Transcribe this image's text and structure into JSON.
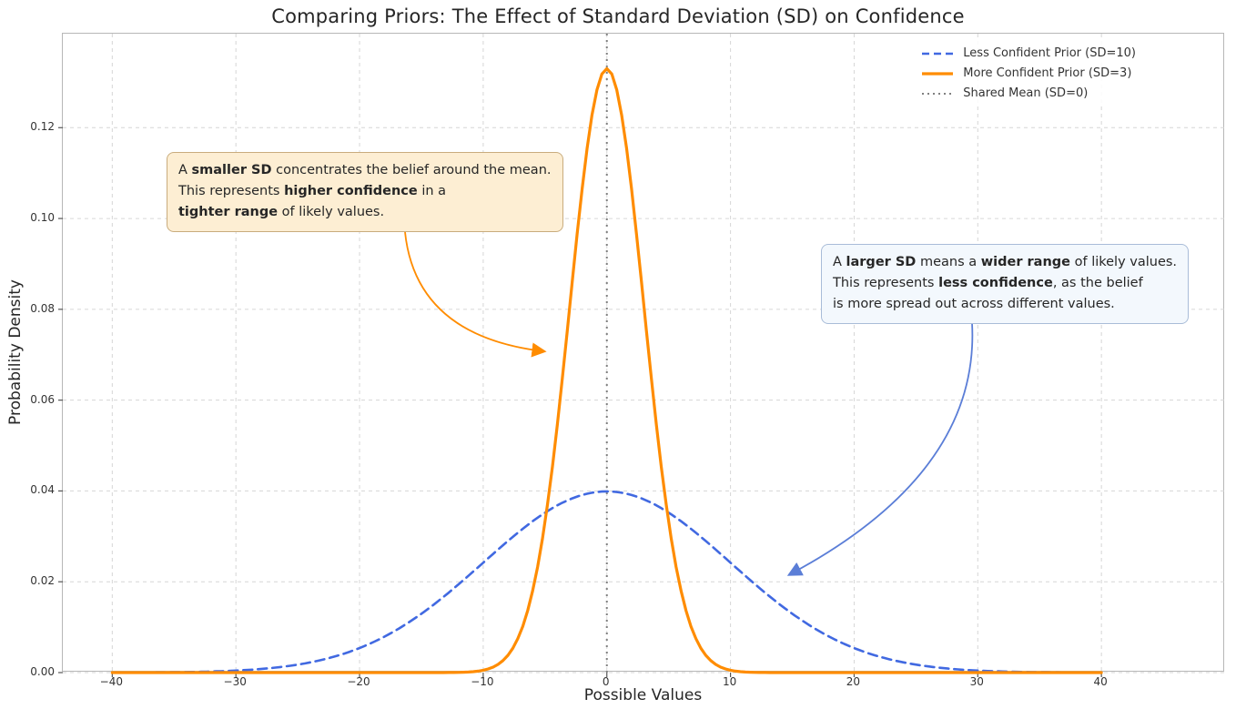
{
  "chart_data": {
    "type": "line",
    "title": "Comparing Priors: The Effect of Standard Deviation (SD) on Confidence",
    "xlabel": "Possible Values",
    "ylabel": "Probability Density",
    "xlim": [
      -44,
      50
    ],
    "ylim": [
      0,
      0.1407
    ],
    "x_ticks": [
      -40,
      -30,
      -20,
      -10,
      0,
      10,
      20,
      30,
      40
    ],
    "x_tick_labels": [
      "−40",
      "−30",
      "−20",
      "−10",
      "0",
      "10",
      "20",
      "30",
      "40"
    ],
    "y_ticks": [
      0,
      0.02,
      0.04,
      0.06,
      0.08,
      0.1,
      0.12
    ],
    "y_tick_labels": [
      "0.00",
      "0.02",
      "0.04",
      "0.06",
      "0.08",
      "0.10",
      "0.12"
    ],
    "grid": true,
    "legend_position": "upper right",
    "series": [
      {
        "name": "Less Confident Prior (SD=10)",
        "distribution": "normal",
        "mean": 0,
        "sd": 10,
        "peak_density": 0.0399,
        "x_range": [
          -40,
          40
        ],
        "color": "#4169e1",
        "line_style": "dashed",
        "line_width": 2.6
      },
      {
        "name": "More Confident Prior (SD=3)",
        "distribution": "normal",
        "mean": 0,
        "sd": 3,
        "peak_density": 0.133,
        "x_range": [
          -40,
          40
        ],
        "color": "#ff8c00",
        "line_style": "solid",
        "line_width": 3.2
      }
    ],
    "vline": {
      "name": "Shared Mean (SD=0)",
      "x": 0,
      "color": "#808080",
      "line_style": "dotted",
      "line_width": 2
    },
    "annotations": [
      {
        "id": "smaller-sd",
        "lines": [
          [
            {
              "text": "A ",
              "bold": false
            },
            {
              "text": "smaller SD",
              "bold": true
            },
            {
              "text": " concentrates the belief around the mean.",
              "bold": false
            }
          ],
          [
            {
              "text": "This represents ",
              "bold": false
            },
            {
              "text": "higher confidence",
              "bold": true
            },
            {
              "text": " in a",
              "bold": false
            }
          ],
          [
            {
              "text": "tighter range",
              "bold": true
            },
            {
              "text": " of likely values.",
              "bold": false
            }
          ]
        ],
        "box_color": "#fdeed3",
        "border_color": "#c9ac7d",
        "arrow_color": "#ff8c00",
        "box": {
          "left": 114,
          "top": 130
        },
        "arrow": {
          "start": [
            376,
            218
          ],
          "control": [
            388,
            332
          ],
          "end": [
            528,
            349
          ]
        }
      },
      {
        "id": "larger-sd",
        "lines": [
          [
            {
              "text": "A ",
              "bold": false
            },
            {
              "text": "larger SD",
              "bold": true
            },
            {
              "text": " means a ",
              "bold": false
            },
            {
              "text": "wider range",
              "bold": true
            },
            {
              "text": " of likely values.",
              "bold": false
            }
          ],
          [
            {
              "text": "This represents ",
              "bold": false
            },
            {
              "text": "less confidence",
              "bold": true
            },
            {
              "text": ", as the belief",
              "bold": false
            }
          ],
          [
            {
              "text": "is more spread out across different values.",
              "bold": false
            }
          ]
        ],
        "box_color": "#f3f8fd",
        "border_color": "#a9bcd8",
        "arrow_color": "#5b7ed7",
        "box": {
          "left": 833,
          "top": 231
        },
        "arrow": {
          "start": [
            999,
            318
          ],
          "control": [
            1008,
            482
          ],
          "end": [
            799,
            594
          ]
        }
      }
    ]
  }
}
